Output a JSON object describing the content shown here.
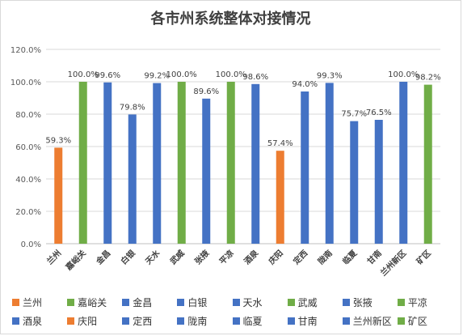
{
  "chart_data": {
    "type": "bar",
    "title": "各市州系统整体对接情况",
    "xlabel": "",
    "ylabel": "",
    "ylim": [
      0,
      120
    ],
    "yticks": [
      "0.0%",
      "20.0%",
      "40.0%",
      "60.0%",
      "80.0%",
      "100.0%",
      "120.0%"
    ],
    "grid": true,
    "legend_position": "bottom",
    "categories": [
      "兰州",
      "嘉峪关",
      "金昌",
      "白银",
      "天水",
      "武威",
      "张掖",
      "平凉",
      "酒泉",
      "庆阳",
      "定西",
      "陇南",
      "临夏",
      "甘南",
      "兰州新区",
      "矿区"
    ],
    "values": [
      59.3,
      100.0,
      99.6,
      79.8,
      99.2,
      100.0,
      89.6,
      100.0,
      98.6,
      57.4,
      94.0,
      99.3,
      75.7,
      76.5,
      100.0,
      98.2
    ],
    "value_labels": [
      "59.3%",
      "100.0%",
      "99.6%",
      "79.8%",
      "99.2%",
      "100.0%",
      "89.6%",
      "100.0%",
      "98.6%",
      "57.4%",
      "94.0%",
      "99.3%",
      "75.7%",
      "76.5%",
      "100.0%",
      "98.2%"
    ],
    "colors": [
      "#ED7D31",
      "#70AD47",
      "#4472C4",
      "#4472C4",
      "#4472C4",
      "#70AD47",
      "#4472C4",
      "#70AD47",
      "#4472C4",
      "#ED7D31",
      "#4472C4",
      "#4472C4",
      "#4472C4",
      "#4472C4",
      "#4472C4",
      "#70AD47"
    ]
  }
}
